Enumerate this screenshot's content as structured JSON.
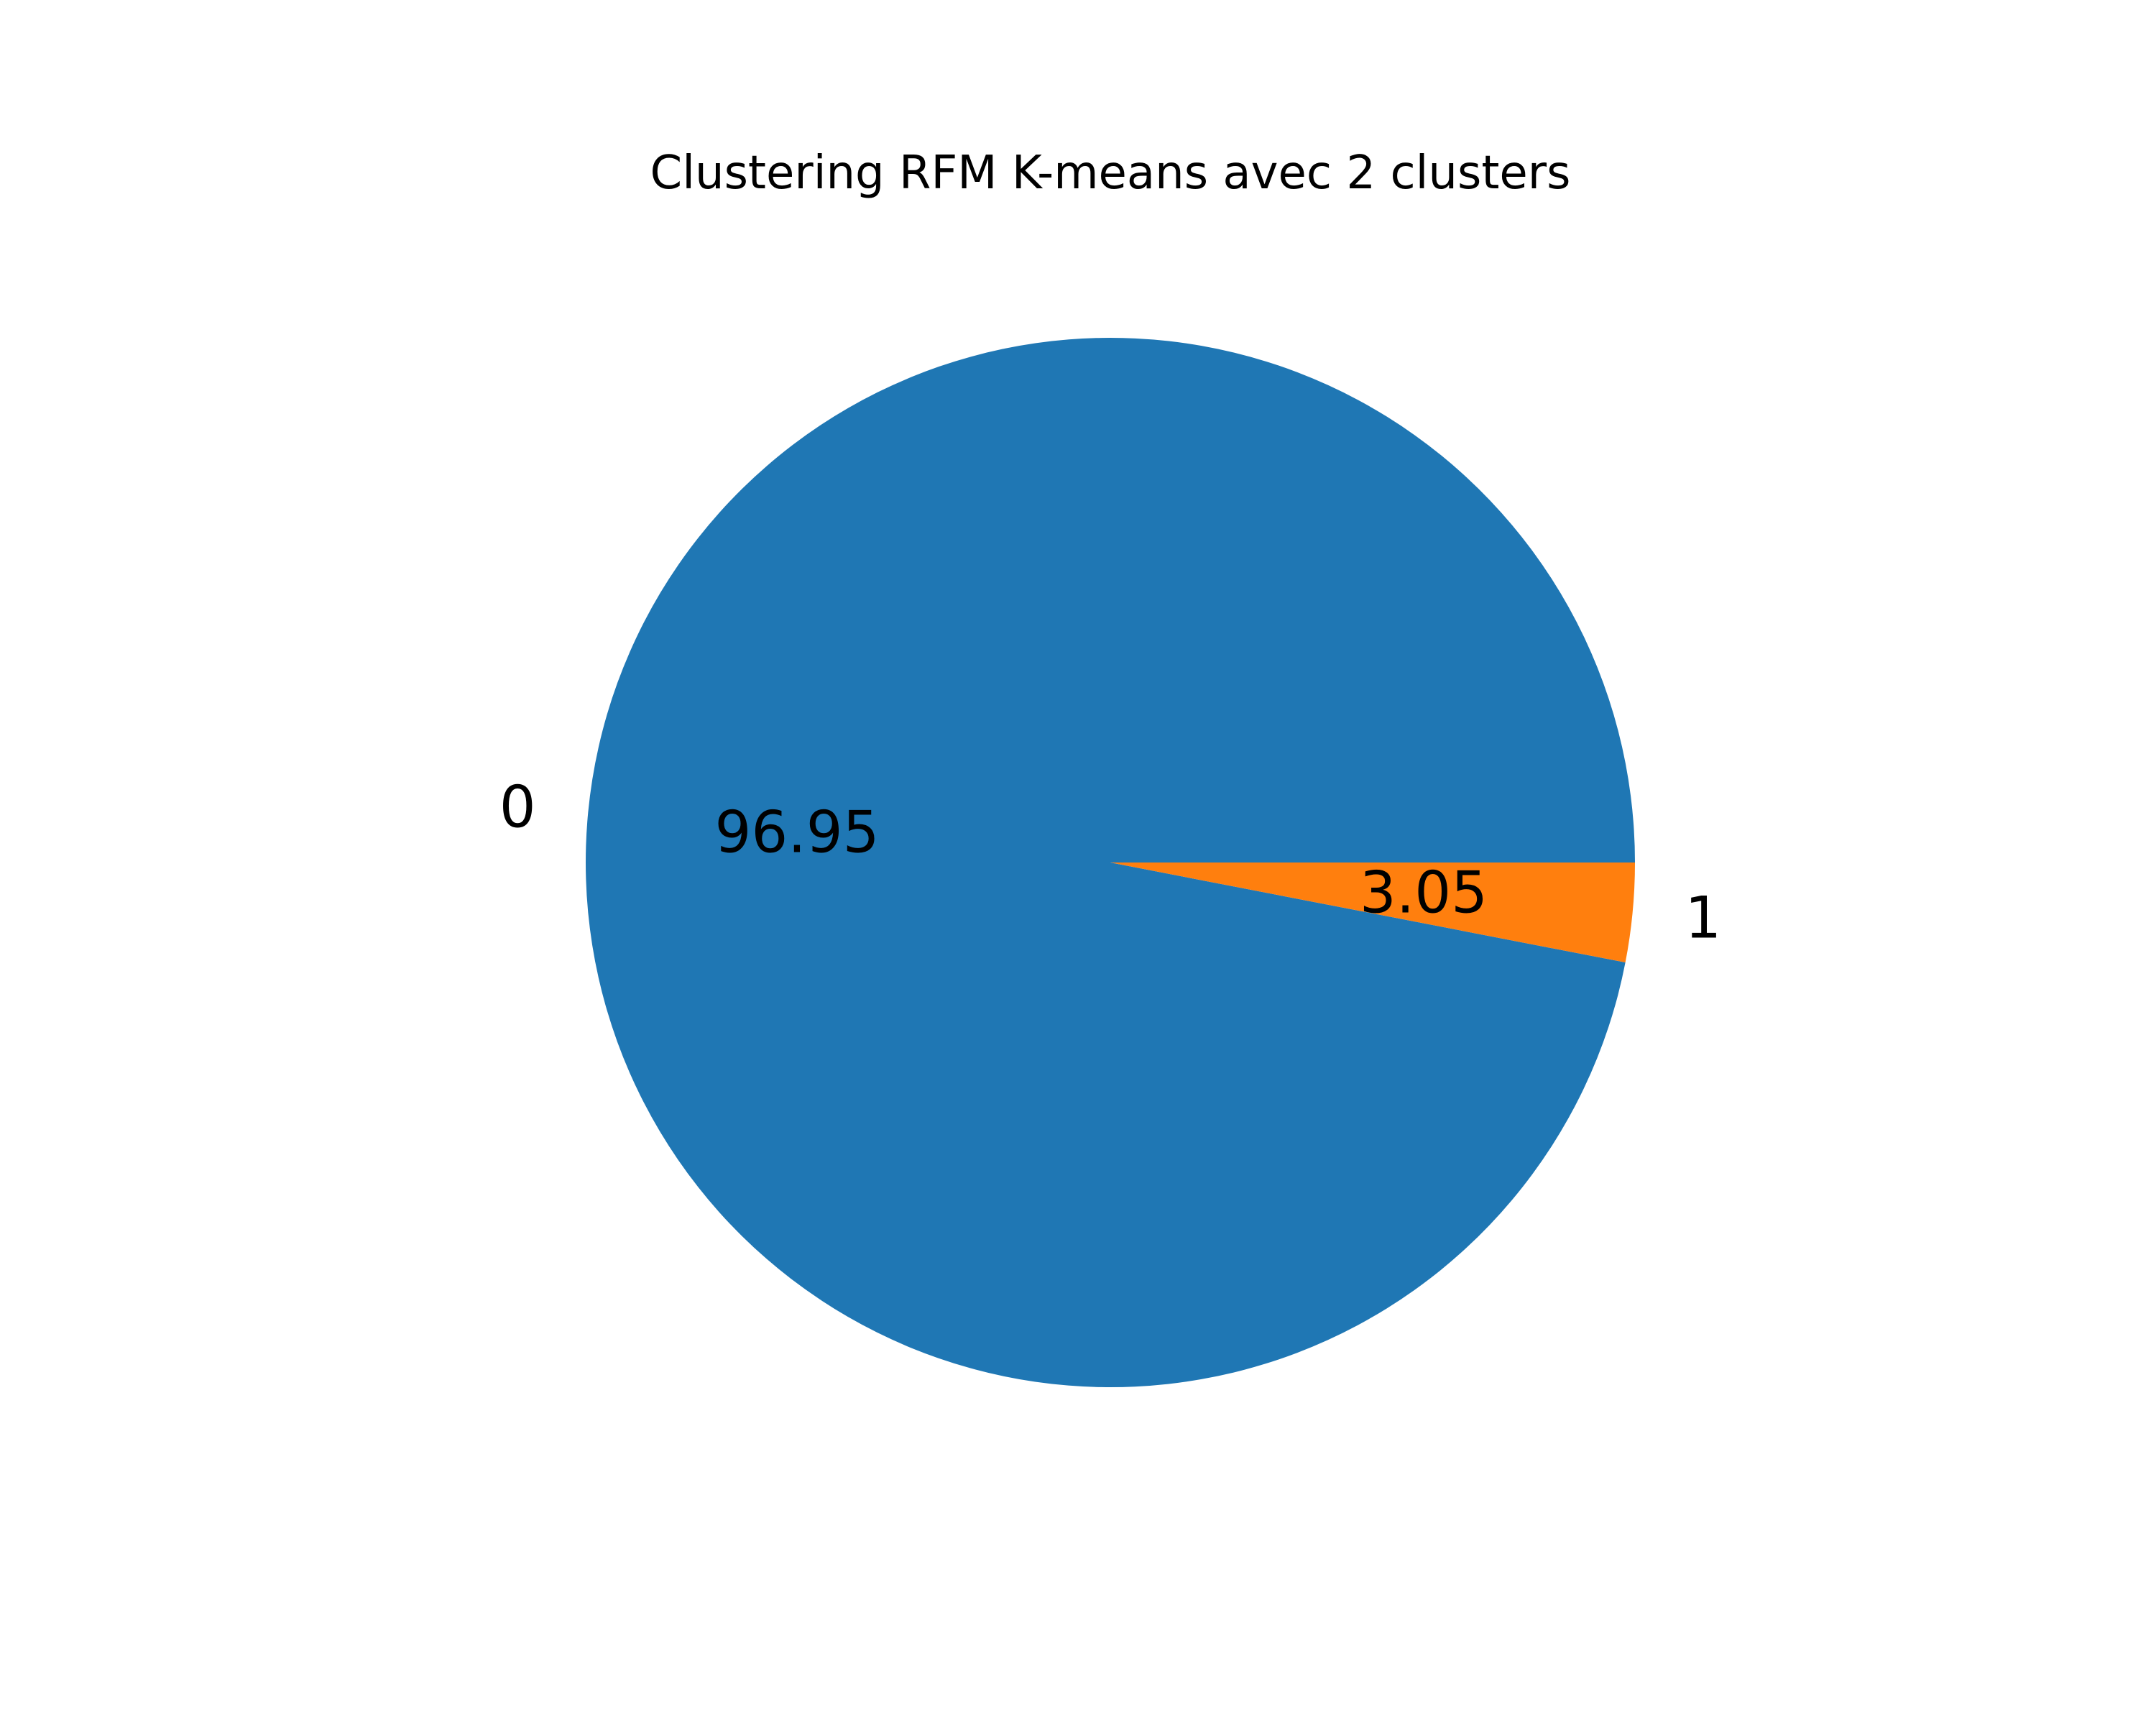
{
  "chart_data": {
    "type": "pie",
    "title": "Clustering RFM K-means avec 2 clusters",
    "categories": [
      "0",
      "1"
    ],
    "values": [
      96.95,
      3.05
    ],
    "value_labels": [
      "96.95",
      "3.05"
    ],
    "colors": [
      "#1f77b4",
      "#ff7f0e"
    ],
    "start_angle_deg": 0,
    "direction": "counterclockwise",
    "legend": "none"
  }
}
